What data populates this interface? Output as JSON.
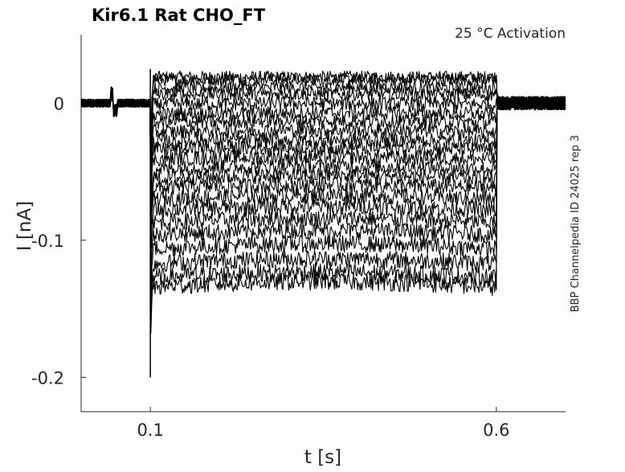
{
  "chart_data": {
    "type": "line",
    "title": "Kir6.1  Rat  CHO_FT",
    "subtitle": "25 °C  Activation",
    "side_label": "BBP Channelpedia ID 24025 rep 3",
    "xlabel": "t [s]",
    "ylabel": "I [nA]",
    "xlim": [
      0.0,
      0.7
    ],
    "ylim": [
      -0.225,
      0.05
    ],
    "x_ticks": [
      0.1,
      0.6
    ],
    "x_tick_labels": [
      "0.1",
      "0.6"
    ],
    "y_ticks": [
      0,
      -0.1,
      -0.2
    ],
    "y_tick_labels": [
      "0",
      "-0.1",
      "-0.2"
    ],
    "grid": false,
    "legend": "none",
    "line_color": "#000000",
    "protocol": {
      "pulse_start": 0.1,
      "pulse_end": 0.6,
      "baseline": 0.0,
      "transient_peak": -0.2
    },
    "sweep_levels": [
      0.019,
      0.017,
      0.011,
      0.006,
      -0.001,
      -0.008,
      -0.014,
      -0.021,
      -0.028,
      -0.034,
      -0.041,
      -0.048,
      -0.055,
      -0.062,
      -0.07,
      -0.078,
      -0.087,
      -0.096,
      -0.106,
      -0.117,
      -0.127,
      -0.134
    ]
  }
}
